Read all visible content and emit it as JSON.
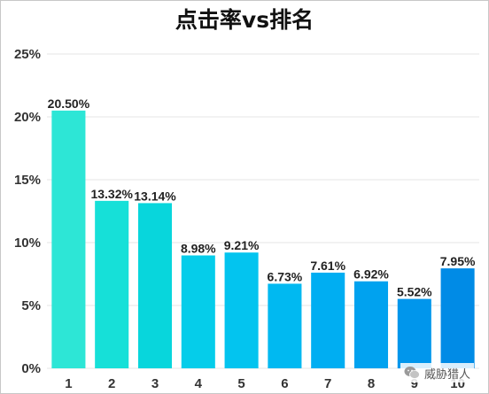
{
  "chart_data": {
    "type": "bar",
    "title": "点击率vs排名",
    "xlabel": "",
    "ylabel": "",
    "categories": [
      "1",
      "2",
      "3",
      "4",
      "5",
      "6",
      "7",
      "8",
      "9",
      "10"
    ],
    "values": [
      20.5,
      13.32,
      13.14,
      8.98,
      9.21,
      6.73,
      7.61,
      6.92,
      5.52,
      7.95
    ],
    "value_labels": [
      "20.50%",
      "13.32%",
      "13.14%",
      "8.98%",
      "9.21%",
      "6.73%",
      "7.61%",
      "6.92%",
      "5.52%",
      "7.95%"
    ],
    "y_ticks": [
      0,
      5,
      10,
      15,
      20,
      25
    ],
    "y_tick_labels": [
      "0%",
      "5%",
      "10%",
      "15%",
      "20%",
      "25%"
    ],
    "ylim": [
      0,
      25
    ],
    "grid": true,
    "legend": "none",
    "bar_colors": [
      "#2de6d6",
      "#16e0d8",
      "#08d6dc",
      "#05cdea",
      "#03c4ef",
      "#00b9f1",
      "#00aef2",
      "#00a2ef",
      "#0096ec",
      "#008be6"
    ]
  },
  "watermark": {
    "text": "威胁猎人",
    "icon": "wechat-logo-icon"
  }
}
